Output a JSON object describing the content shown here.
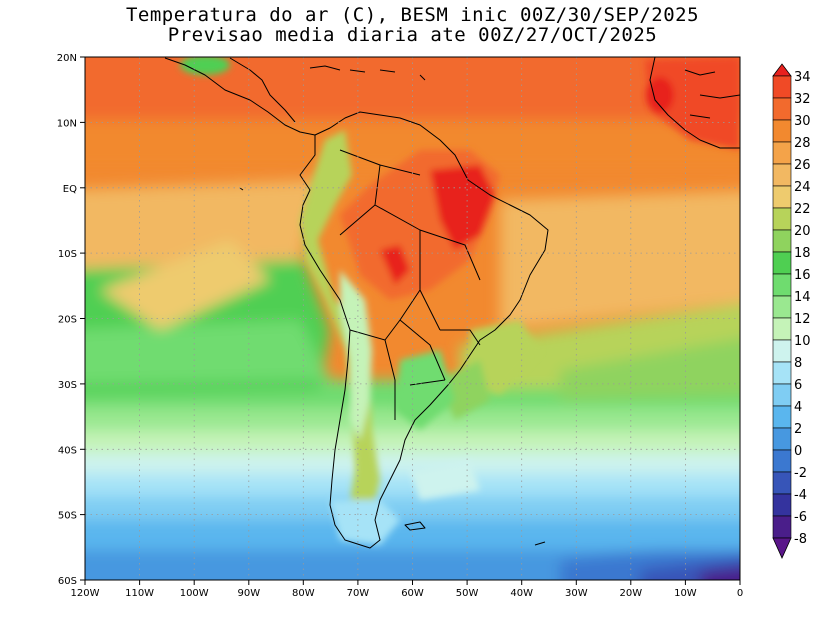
{
  "title": {
    "line1": "Temperatura do ar (C), BESM inic 00Z/30/SEP/2025",
    "line2": "Previsao media diaria ate 00Z/27/OCT/2025"
  },
  "map": {
    "region": "South America and adjacent oceans",
    "lon_range": [
      -120,
      0
    ],
    "lat_range": [
      -60,
      20
    ],
    "lon_ticks": [
      "120W",
      "110W",
      "100W",
      "90W",
      "80W",
      "70W",
      "60W",
      "50W",
      "40W",
      "30W",
      "20W",
      "10W",
      "0"
    ],
    "lat_ticks": [
      "20N",
      "10N",
      "EQ",
      "10S",
      "20S",
      "30S",
      "40S",
      "50S",
      "60S"
    ],
    "gridlines": "dotted"
  },
  "colorbar": {
    "labels": [
      "34",
      "32",
      "30",
      "28",
      "26",
      "24",
      "22",
      "20",
      "18",
      "16",
      "14",
      "12",
      "10",
      "8",
      "6",
      "4",
      "2",
      "0",
      "-2",
      "-4",
      "-6",
      "-8"
    ],
    "colors": [
      "#e8211e",
      "#f04a26",
      "#f26a2d",
      "#f2892f",
      "#f4a349",
      "#f2b862",
      "#eecb6e",
      "#b7d35a",
      "#8fd35e",
      "#4fcf52",
      "#6fdc6f",
      "#9ae890",
      "#c5f3b8",
      "#cef3ee",
      "#a6e3f7",
      "#7fcdf3",
      "#5ab6ee",
      "#4798e0",
      "#3b78d0",
      "#3755b8",
      "#34339e",
      "#4a1e8a",
      "#5a168a"
    ],
    "unit": "C"
  }
}
